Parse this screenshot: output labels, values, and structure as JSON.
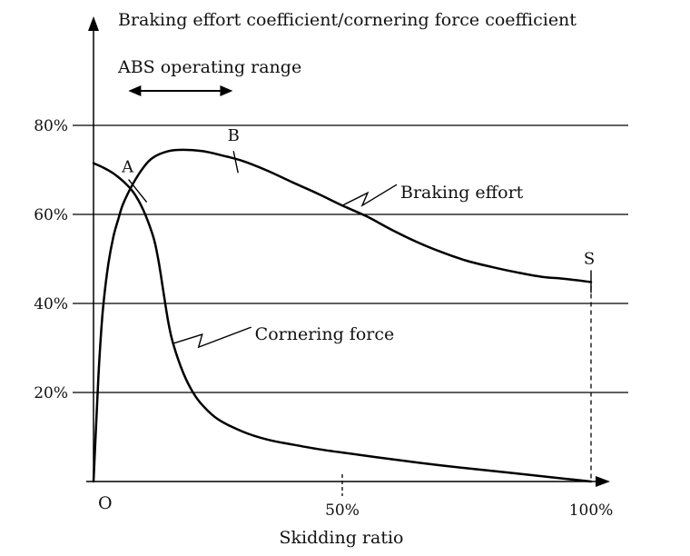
{
  "chart_data": {
    "type": "line",
    "ylabel": "Braking effort coefficient/cornering force coefficient",
    "xlabel": "Skidding ratio",
    "origin_label": "O",
    "ylim": [
      0,
      80
    ],
    "xlim": [
      0,
      100
    ],
    "y_ticks": [
      {
        "value": 80,
        "label": "80%"
      },
      {
        "value": 60,
        "label": "60%"
      },
      {
        "value": 40,
        "label": "40%"
      },
      {
        "value": 20,
        "label": "20%"
      }
    ],
    "x_ticks": [
      {
        "value": 50,
        "label": "50%"
      },
      {
        "value": 100,
        "label": "100%"
      }
    ],
    "grid": true,
    "series": [
      {
        "name": "Braking effort",
        "x": [
          0,
          0.5,
          1,
          1.5,
          2,
          3,
          4,
          5,
          6,
          8,
          10,
          12,
          15,
          18,
          22,
          26,
          30,
          35,
          40,
          45,
          50,
          55,
          60,
          65,
          70,
          75,
          80,
          85,
          90,
          95,
          100
        ],
        "y": [
          0,
          12,
          24,
          33,
          40,
          49,
          55,
          59,
          62.5,
          67,
          70.5,
          72.8,
          74.2,
          74.5,
          74.2,
          73.2,
          72,
          69.8,
          67.2,
          64.7,
          62,
          59.5,
          56.5,
          53.8,
          51.5,
          49.6,
          48.2,
          47,
          46,
          45.5,
          44.8
        ]
      },
      {
        "name": "Cornering force",
        "x": [
          0,
          2,
          4,
          6,
          8,
          10,
          12,
          13,
          14,
          15,
          16,
          18,
          20,
          22,
          25,
          30,
          35,
          40,
          45,
          50,
          60,
          70,
          80,
          90,
          95,
          100
        ],
        "y": [
          71.5,
          70.5,
          69.2,
          67.4,
          65,
          61,
          55,
          50,
          43,
          36,
          31,
          24.5,
          20,
          17,
          14,
          11.2,
          9.4,
          8.3,
          7.3,
          6.5,
          5,
          3.6,
          2.4,
          1.2,
          0.6,
          0
        ]
      }
    ],
    "annotations": {
      "abs_range": {
        "label": "ABS operating range",
        "x_start": 7,
        "x_end": 28
      },
      "points": [
        {
          "label": "A",
          "x": 8.5,
          "y": 65.6
        },
        {
          "label": "B",
          "x": 28.5,
          "y": 72.2
        },
        {
          "label": "S",
          "x": 100,
          "y": 44.8
        }
      ],
      "callouts": [
        {
          "series": "Braking effort",
          "label": "Braking effort",
          "at_x": 50
        },
        {
          "series": "Cornering force",
          "label": "Cornering force",
          "at_x": 16
        }
      ]
    }
  }
}
